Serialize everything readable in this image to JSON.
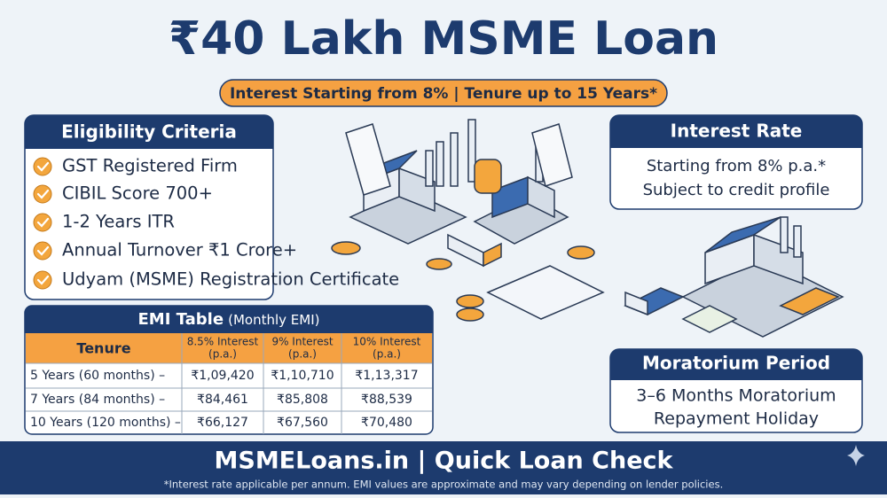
{
  "header": {
    "title": "₹40 Lakh MSME Loan",
    "subtitle": "Interest Starting from 8% | Tenure up to 15 Years*"
  },
  "eligibility": {
    "title": "Eligibility Criteria",
    "items": [
      "GST Registered Firm",
      "CIBIL Score 700+",
      "1-2 Years ITR",
      "Annual Turnover ₹1 Crore+",
      "Udyam (MSME) Registration Certificate"
    ]
  },
  "emi_table": {
    "title": "EMI Table",
    "subtitle": "(Monthly EMI)",
    "headers": [
      [
        "Tenure"
      ],
      [
        "8.5% Interest",
        "(p.a.)"
      ],
      [
        "9% Interest",
        "(p.a.)"
      ],
      [
        "10% Interest",
        "(p.a.)"
      ]
    ],
    "rows": [
      [
        "5 Years (60 months) –",
        "₹1,09,420",
        "₹1,10,710",
        "₹1,13,317"
      ],
      [
        "7 Years (84 months) –",
        "₹84,461",
        "₹85,808",
        "₹88,539"
      ],
      [
        "10 Years (120 months) –",
        "₹66,127",
        "₹67,560",
        "₹70,480"
      ]
    ]
  },
  "interest_rate": {
    "title": "Interest Rate",
    "lines": [
      "Starting from 8% p.a.*",
      "Subject to credit profile"
    ]
  },
  "moratorium": {
    "title": "Moratorium Period",
    "lines": [
      "3–6 Months Moratorium",
      "Repayment Holiday"
    ]
  },
  "footer": {
    "brand": "MSMELoans.in | Quick Loan Check",
    "note": "*Interest rate applicable per annum. EMI values are approximate and may vary depending on lender policies."
  }
}
